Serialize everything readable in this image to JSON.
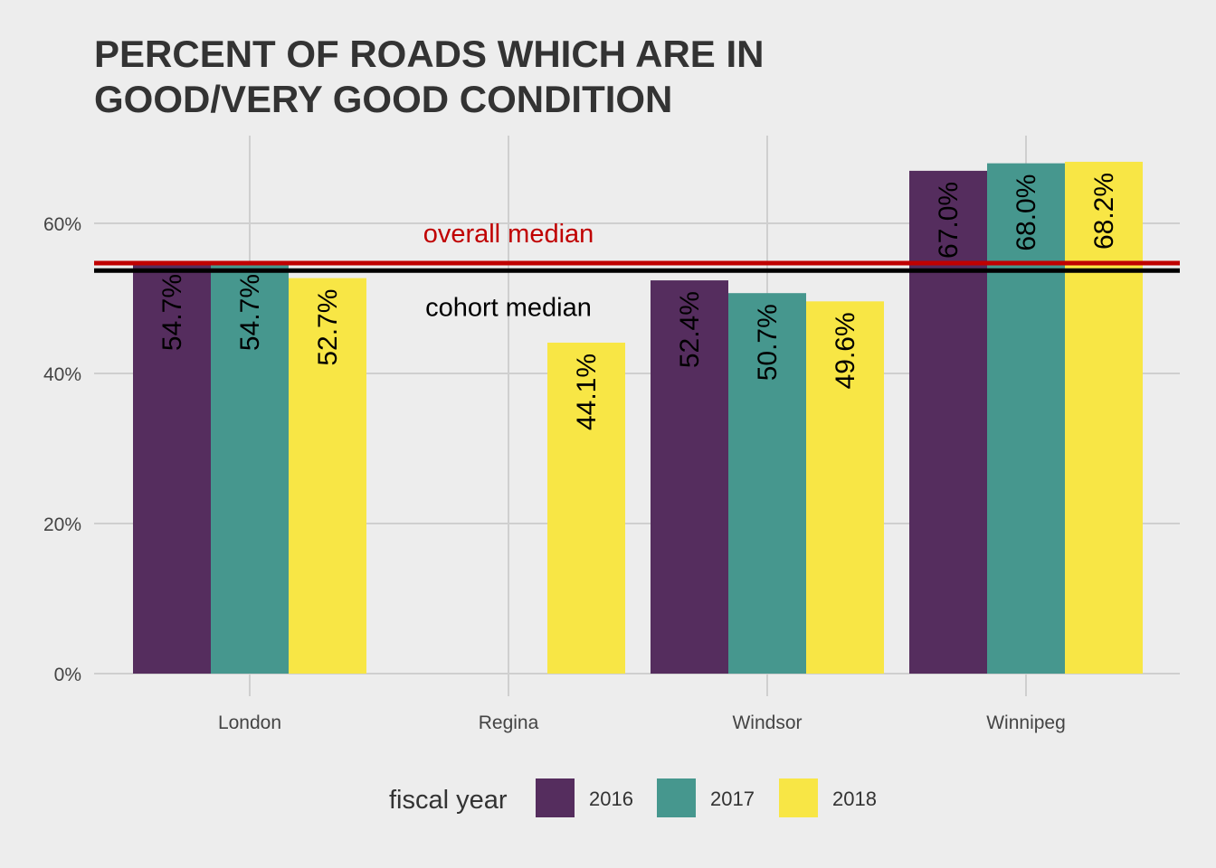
{
  "chart_data": {
    "type": "bar",
    "title_lines": [
      "PERCENT OF ROADS WHICH ARE IN",
      "GOOD/VERY GOOD CONDITION"
    ],
    "categories": [
      "London",
      "Regina",
      "Windsor",
      "Winnipeg"
    ],
    "series": [
      {
        "name": "2016",
        "color": "#552d5e",
        "values": [
          54.7,
          null,
          52.4,
          67.0
        ],
        "labels": [
          "54.7%",
          null,
          "52.4%",
          "67.0%"
        ]
      },
      {
        "name": "2017",
        "color": "#46978e",
        "values": [
          54.7,
          null,
          50.7,
          68.0
        ],
        "labels": [
          "54.7%",
          null,
          "50.7%",
          "68.0%"
        ]
      },
      {
        "name": "2018",
        "color": "#f8e645",
        "values": [
          52.7,
          44.1,
          49.6,
          68.2
        ],
        "labels": [
          "52.7%",
          "44.1%",
          "49.6%",
          "68.2%"
        ]
      }
    ],
    "y_ticks": [
      {
        "value": 0,
        "label": "0%"
      },
      {
        "value": 20,
        "label": "20%"
      },
      {
        "value": 40,
        "label": "40%"
      },
      {
        "value": 60,
        "label": "60%"
      }
    ],
    "ylim": [
      0,
      72
    ],
    "grid": true,
    "reference_lines": [
      {
        "name": "overall median",
        "value": 54.7,
        "color": "#c00000",
        "label": "overall median"
      },
      {
        "name": "cohort median",
        "value": 53.7,
        "color": "#000000",
        "label": "cohort median"
      }
    ],
    "legend": {
      "title": "fiscal year",
      "position": "bottom"
    }
  }
}
